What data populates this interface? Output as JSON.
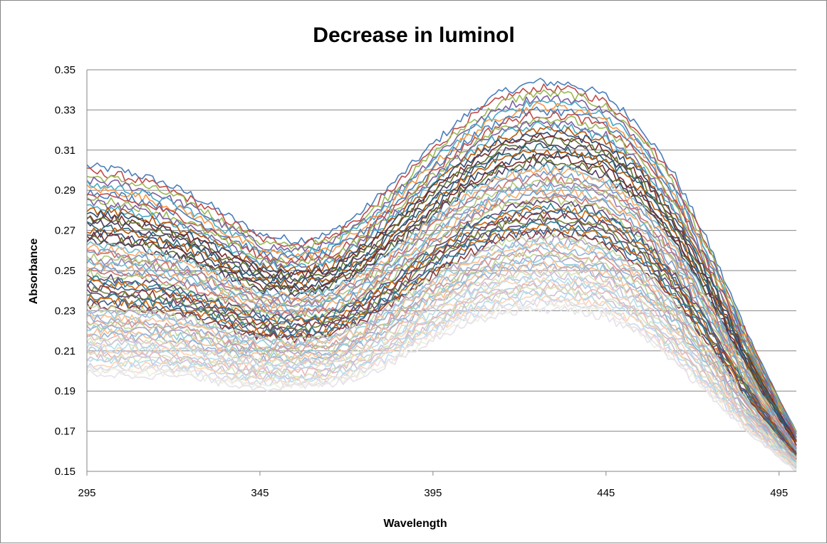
{
  "chart_data": {
    "type": "line",
    "title": "Decrease in luminol",
    "xlabel": "Wavelength",
    "ylabel": "Absorbance",
    "xlim": [
      295,
      500
    ],
    "ylim": [
      0.15,
      0.35
    ],
    "xticks": [
      "295",
      "345",
      "395",
      "445",
      "495"
    ],
    "yticks": [
      "0.35",
      "0.33",
      "0.31",
      "0.29",
      "0.27",
      "0.25",
      "0.23",
      "0.21",
      "0.19",
      "0.17",
      "0.15"
    ],
    "grid": true,
    "legend": "none",
    "series_count": 70,
    "x_step": 1,
    "series_shape": {
      "x": [
        295,
        305,
        315,
        325,
        335,
        345,
        355,
        365,
        375,
        385,
        395,
        405,
        415,
        425,
        435,
        445,
        455,
        465,
        475,
        485,
        495,
        500
      ],
      "first_series": [
        0.302,
        0.3,
        0.295,
        0.288,
        0.278,
        0.268,
        0.265,
        0.268,
        0.28,
        0.296,
        0.313,
        0.328,
        0.339,
        0.344,
        0.343,
        0.337,
        0.322,
        0.297,
        0.262,
        0.222,
        0.186,
        0.17
      ],
      "last_series": [
        0.199,
        0.198,
        0.198,
        0.197,
        0.194,
        0.192,
        0.192,
        0.193,
        0.198,
        0.206,
        0.216,
        0.224,
        0.229,
        0.231,
        0.23,
        0.227,
        0.218,
        0.204,
        0.188,
        0.171,
        0.157,
        0.15
      ]
    },
    "colors": [
      "#4a7ebb",
      "#be4b48",
      "#98b954",
      "#7d60a0",
      "#46aac5",
      "#f79646",
      "#2c4d75",
      "#772c2a",
      "#5f7530",
      "#4d3b62",
      "#276a7c",
      "#b65708",
      "#729aca",
      "#cd7371",
      "#afc97a",
      "#9983b5",
      "#6fbdd1",
      "#f9ab6b",
      "#3a5e8c",
      "#8e3a38",
      "#71893a",
      "#5f4878",
      "#2f8093",
      "#d26a0e",
      "#95b3d7",
      "#d99694",
      "#c3d69b",
      "#b3a2c7",
      "#93cddd",
      "#fac090",
      "#b9cde5",
      "#e6b9b8",
      "#d7e4bd",
      "#ccc1da",
      "#b7dee8",
      "#fcd5b5",
      "#c6d9f1",
      "#f2dcdb",
      "#ebf1de",
      "#e6e0ec",
      "#dbeef4",
      "#fdeada",
      "#d9d9d9",
      "#c4c4d8"
    ]
  }
}
